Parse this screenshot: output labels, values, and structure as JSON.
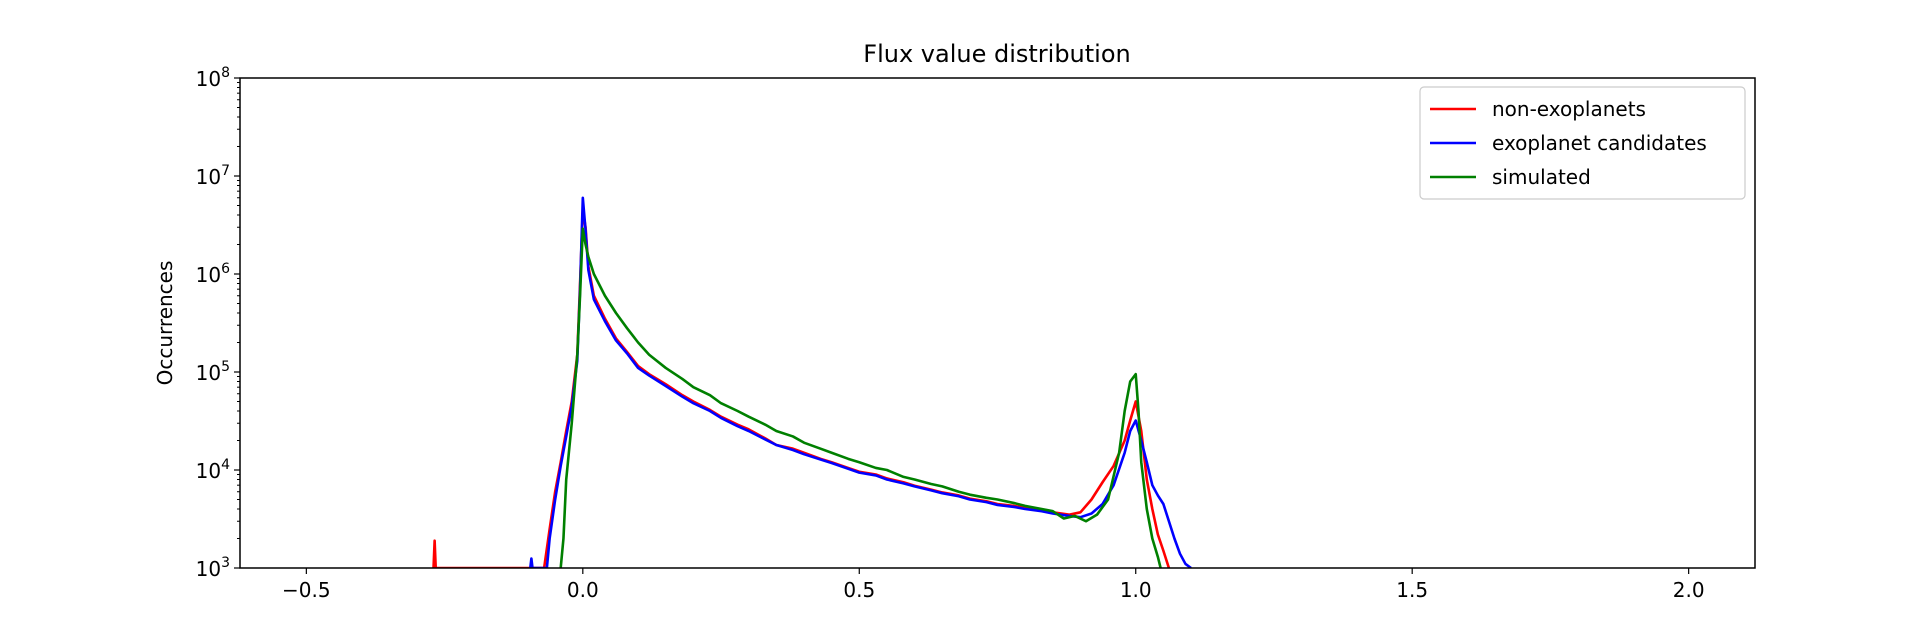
{
  "chart_data": {
    "type": "line",
    "title": "Flux value distribution",
    "xlabel": "",
    "ylabel": "Occurrences",
    "xlim": [
      -0.62,
      2.12
    ],
    "ylim": [
      1000,
      100000000
    ],
    "yscale": "log",
    "x_ticks": [
      -0.5,
      0.0,
      0.5,
      1.0,
      1.5,
      2.0
    ],
    "x_tick_labels": [
      "−0.5",
      "0.0",
      "0.5",
      "1.0",
      "1.5",
      "2.0"
    ],
    "y_ticks": [
      1000,
      10000,
      100000,
      1000000,
      10000000,
      100000000
    ],
    "y_tick_labels": [
      {
        "base": "10",
        "exp": "3"
      },
      {
        "base": "10",
        "exp": "4"
      },
      {
        "base": "10",
        "exp": "5"
      },
      {
        "base": "10",
        "exp": "6"
      },
      {
        "base": "10",
        "exp": "7"
      },
      {
        "base": "10",
        "exp": "8"
      }
    ],
    "grid": false,
    "legend_position": "top-right",
    "series": [
      {
        "name": "non-exoplanets",
        "color": "#ff0000",
        "points": [
          [
            -0.27,
            1000
          ],
          [
            -0.268,
            1900
          ],
          [
            -0.266,
            1000
          ],
          [
            -0.07,
            1000
          ],
          [
            -0.06,
            2500
          ],
          [
            -0.05,
            6000
          ],
          [
            -0.04,
            12000
          ],
          [
            -0.03,
            25000
          ],
          [
            -0.02,
            50000
          ],
          [
            -0.01,
            150000
          ],
          [
            -0.005,
            800000
          ],
          [
            0.0,
            4500000
          ],
          [
            0.005,
            3000000
          ],
          [
            0.01,
            1200000
          ],
          [
            0.02,
            600000
          ],
          [
            0.04,
            350000
          ],
          [
            0.06,
            220000
          ],
          [
            0.08,
            160000
          ],
          [
            0.1,
            115000
          ],
          [
            0.12,
            95000
          ],
          [
            0.15,
            75000
          ],
          [
            0.18,
            58000
          ],
          [
            0.2,
            50000
          ],
          [
            0.23,
            41000
          ],
          [
            0.25,
            35000
          ],
          [
            0.28,
            29000
          ],
          [
            0.3,
            26000
          ],
          [
            0.33,
            21000
          ],
          [
            0.35,
            18000
          ],
          [
            0.38,
            16500
          ],
          [
            0.4,
            15000
          ],
          [
            0.43,
            13000
          ],
          [
            0.45,
            12000
          ],
          [
            0.48,
            10500
          ],
          [
            0.5,
            9600
          ],
          [
            0.53,
            9000
          ],
          [
            0.55,
            8200
          ],
          [
            0.58,
            7500
          ],
          [
            0.6,
            6900
          ],
          [
            0.63,
            6300
          ],
          [
            0.65,
            5900
          ],
          [
            0.68,
            5500
          ],
          [
            0.7,
            5100
          ],
          [
            0.73,
            4800
          ],
          [
            0.75,
            4500
          ],
          [
            0.78,
            4300
          ],
          [
            0.8,
            4100
          ],
          [
            0.83,
            3900
          ],
          [
            0.85,
            3700
          ],
          [
            0.88,
            3500
          ],
          [
            0.9,
            3700
          ],
          [
            0.92,
            5000
          ],
          [
            0.94,
            7500
          ],
          [
            0.96,
            11000
          ],
          [
            0.98,
            20000
          ],
          [
            0.99,
            32000
          ],
          [
            1.0,
            50000
          ],
          [
            1.01,
            25000
          ],
          [
            1.02,
            8000
          ],
          [
            1.03,
            4000
          ],
          [
            1.04,
            2200
          ],
          [
            1.05,
            1500
          ],
          [
            1.06,
            1000
          ]
        ]
      },
      {
        "name": "exoplanet candidates",
        "color": "#0000ff",
        "points": [
          [
            -0.095,
            1000
          ],
          [
            -0.093,
            1250
          ],
          [
            -0.091,
            1000
          ],
          [
            -0.065,
            1000
          ],
          [
            -0.06,
            2000
          ],
          [
            -0.05,
            5000
          ],
          [
            -0.04,
            11000
          ],
          [
            -0.03,
            22000
          ],
          [
            -0.02,
            45000
          ],
          [
            -0.01,
            130000
          ],
          [
            -0.005,
            700000
          ],
          [
            0.0,
            6000000
          ],
          [
            0.005,
            2800000
          ],
          [
            0.01,
            1100000
          ],
          [
            0.02,
            550000
          ],
          [
            0.04,
            330000
          ],
          [
            0.06,
            210000
          ],
          [
            0.08,
            155000
          ],
          [
            0.1,
            110000
          ],
          [
            0.12,
            92000
          ],
          [
            0.15,
            72000
          ],
          [
            0.18,
            56000
          ],
          [
            0.2,
            48000
          ],
          [
            0.23,
            40000
          ],
          [
            0.25,
            34000
          ],
          [
            0.28,
            28000
          ],
          [
            0.3,
            25000
          ],
          [
            0.33,
            20500
          ],
          [
            0.35,
            18000
          ],
          [
            0.38,
            16000
          ],
          [
            0.4,
            14500
          ],
          [
            0.43,
            12800
          ],
          [
            0.45,
            11800
          ],
          [
            0.48,
            10300
          ],
          [
            0.5,
            9400
          ],
          [
            0.53,
            8800
          ],
          [
            0.55,
            8000
          ],
          [
            0.58,
            7300
          ],
          [
            0.6,
            6800
          ],
          [
            0.63,
            6200
          ],
          [
            0.65,
            5800
          ],
          [
            0.68,
            5400
          ],
          [
            0.7,
            5000
          ],
          [
            0.73,
            4700
          ],
          [
            0.75,
            4400
          ],
          [
            0.78,
            4200
          ],
          [
            0.8,
            4000
          ],
          [
            0.83,
            3800
          ],
          [
            0.85,
            3600
          ],
          [
            0.88,
            3400
          ],
          [
            0.9,
            3300
          ],
          [
            0.92,
            3600
          ],
          [
            0.94,
            4500
          ],
          [
            0.96,
            7000
          ],
          [
            0.98,
            15000
          ],
          [
            0.99,
            25000
          ],
          [
            1.0,
            32000
          ],
          [
            1.01,
            20000
          ],
          [
            1.02,
            12000
          ],
          [
            1.03,
            7000
          ],
          [
            1.04,
            5500
          ],
          [
            1.05,
            4500
          ],
          [
            1.06,
            3000
          ],
          [
            1.07,
            2000
          ],
          [
            1.08,
            1400
          ],
          [
            1.09,
            1100
          ],
          [
            1.1,
            1000
          ]
        ]
      },
      {
        "name": "simulated",
        "color": "#008000",
        "points": [
          [
            -0.04,
            1000
          ],
          [
            -0.035,
            2000
          ],
          [
            -0.03,
            8000
          ],
          [
            -0.02,
            30000
          ],
          [
            -0.01,
            150000
          ],
          [
            -0.005,
            600000
          ],
          [
            0.0,
            2900000
          ],
          [
            0.005,
            2000000
          ],
          [
            0.01,
            1500000
          ],
          [
            0.02,
            1000000
          ],
          [
            0.04,
            600000
          ],
          [
            0.06,
            400000
          ],
          [
            0.08,
            280000
          ],
          [
            0.1,
            200000
          ],
          [
            0.12,
            150000
          ],
          [
            0.15,
            110000
          ],
          [
            0.18,
            85000
          ],
          [
            0.2,
            70000
          ],
          [
            0.23,
            58000
          ],
          [
            0.25,
            48000
          ],
          [
            0.28,
            40000
          ],
          [
            0.3,
            35000
          ],
          [
            0.33,
            29000
          ],
          [
            0.35,
            25000
          ],
          [
            0.38,
            22000
          ],
          [
            0.4,
            19000
          ],
          [
            0.43,
            16500
          ],
          [
            0.45,
            15000
          ],
          [
            0.48,
            13000
          ],
          [
            0.5,
            12000
          ],
          [
            0.53,
            10500
          ],
          [
            0.55,
            10000
          ],
          [
            0.58,
            8500
          ],
          [
            0.6,
            8000
          ],
          [
            0.63,
            7200
          ],
          [
            0.65,
            6800
          ],
          [
            0.68,
            6000
          ],
          [
            0.7,
            5600
          ],
          [
            0.73,
            5200
          ],
          [
            0.75,
            5000
          ],
          [
            0.78,
            4600
          ],
          [
            0.8,
            4300
          ],
          [
            0.83,
            4000
          ],
          [
            0.85,
            3800
          ],
          [
            0.87,
            3200
          ],
          [
            0.89,
            3400
          ],
          [
            0.91,
            3000
          ],
          [
            0.93,
            3500
          ],
          [
            0.95,
            5000
          ],
          [
            0.97,
            15000
          ],
          [
            0.98,
            40000
          ],
          [
            0.99,
            80000
          ],
          [
            1.0,
            95000
          ],
          [
            1.005,
            40000
          ],
          [
            1.01,
            12000
          ],
          [
            1.02,
            4000
          ],
          [
            1.03,
            2000
          ],
          [
            1.04,
            1300
          ],
          [
            1.045,
            1000
          ]
        ]
      }
    ]
  }
}
